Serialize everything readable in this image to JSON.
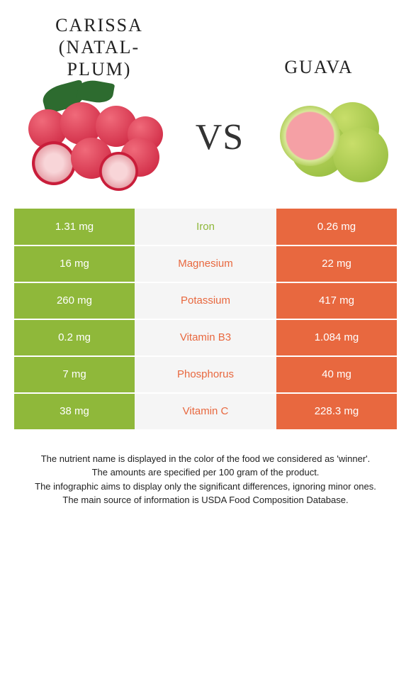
{
  "left_fruit": {
    "title_line1": "CARISSA",
    "title_line2": "(NATAL-",
    "title_line3": "PLUM)"
  },
  "right_fruit": {
    "title": "GUAVA"
  },
  "vs_label": "VS",
  "colors": {
    "left_bg": "#8fb83a",
    "right_bg": "#e8683f",
    "mid_bg": "#f5f5f5",
    "carissa_main": "#c91d3a",
    "carissa_light": "#f06a7a",
    "guava_skin": "#8fb83a",
    "guava_flesh": "#f5a0a5"
  },
  "rows": [
    {
      "left": "1.31 mg",
      "name": "Iron",
      "right": "0.26 mg",
      "winner": "left"
    },
    {
      "left": "16 mg",
      "name": "Magnesium",
      "right": "22 mg",
      "winner": "right"
    },
    {
      "left": "260 mg",
      "name": "Potassium",
      "right": "417 mg",
      "winner": "right"
    },
    {
      "left": "0.2 mg",
      "name": "Vitamin B3",
      "right": "1.084 mg",
      "winner": "right"
    },
    {
      "left": "7 mg",
      "name": "Phosphorus",
      "right": "40 mg",
      "winner": "right"
    },
    {
      "left": "38 mg",
      "name": "Vitamin C",
      "right": "228.3 mg",
      "winner": "right"
    }
  ],
  "footer": {
    "line1": "The nutrient name is displayed in the color of the food we considered as 'winner'.",
    "line2": "The amounts are specified per 100 gram of the product.",
    "line3": "The infographic aims to display only the significant differences, ignoring minor ones.",
    "line4": "The main source of information is USDA Food Composition Database."
  }
}
